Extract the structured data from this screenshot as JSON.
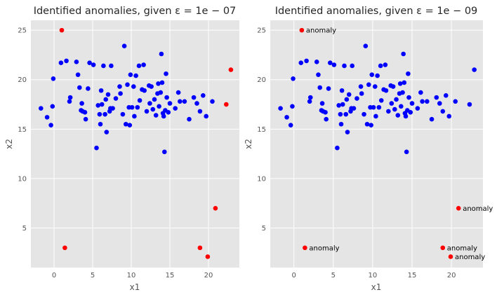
{
  "chart_data": [
    {
      "type": "scatter",
      "title": "Identified anomalies, given ε = 1e − 07",
      "xlabel": "x1",
      "ylabel": "x2",
      "xlim": [
        -3,
        24
      ],
      "ylim": [
        1,
        26
      ],
      "xticks": [
        "0",
        "5",
        "10",
        "15",
        "20"
      ],
      "yticks": [
        "5",
        "10",
        "15",
        "20",
        "25"
      ],
      "grid": true,
      "colors": {
        "background": "#e5e5e5",
        "normal": "#0000ff",
        "anomaly": "#ff0000",
        "grid": "#ffffff"
      },
      "normal_points": [
        [
          -1.7,
          17.1
        ],
        [
          -0.9,
          16.2
        ],
        [
          -0.4,
          15.4
        ],
        [
          -0.2,
          17.3
        ],
        [
          -0.1,
          20.1
        ],
        [
          0.9,
          21.7
        ],
        [
          1.6,
          21.9
        ],
        [
          2.0,
          17.8
        ],
        [
          2.1,
          18.2
        ],
        [
          2.9,
          21.8
        ],
        [
          3.1,
          20.5
        ],
        [
          3.3,
          19.2
        ],
        [
          3.5,
          16.9
        ],
        [
          3.6,
          17.6
        ],
        [
          3.7,
          16.8
        ],
        [
          4.0,
          16.7
        ],
        [
          4.1,
          16.0
        ],
        [
          4.4,
          19.1
        ],
        [
          4.6,
          21.7
        ],
        [
          5.1,
          21.5
        ],
        [
          5.5,
          13.1
        ],
        [
          5.7,
          17.4
        ],
        [
          5.9,
          16.5
        ],
        [
          6.0,
          15.5
        ],
        [
          6.1,
          18.9
        ],
        [
          6.2,
          17.5
        ],
        [
          6.4,
          21.4
        ],
        [
          6.6,
          16.5
        ],
        [
          6.7,
          18.0
        ],
        [
          6.8,
          14.7
        ],
        [
          7.0,
          18.5
        ],
        [
          7.2,
          16.8
        ],
        [
          7.3,
          17.1
        ],
        [
          7.4,
          21.4
        ],
        [
          7.6,
          17.1
        ],
        [
          8.0,
          18.1
        ],
        [
          8.5,
          19.3
        ],
        [
          8.6,
          18.6
        ],
        [
          8.9,
          16.5
        ],
        [
          9.1,
          23.4
        ],
        [
          9.3,
          15.5
        ],
        [
          9.5,
          19.5
        ],
        [
          9.7,
          17.2
        ],
        [
          9.8,
          15.4
        ],
        [
          9.9,
          20.5
        ],
        [
          10.1,
          17.2
        ],
        [
          10.3,
          19.3
        ],
        [
          10.4,
          16.3
        ],
        [
          10.6,
          20.4
        ],
        [
          10.8,
          17.2
        ],
        [
          11.0,
          21.4
        ],
        [
          11.1,
          17.9
        ],
        [
          11.4,
          19.0
        ],
        [
          11.6,
          21.5
        ],
        [
          11.7,
          18.9
        ],
        [
          12.0,
          16.8
        ],
        [
          12.3,
          19.4
        ],
        [
          12.4,
          17.6
        ],
        [
          12.6,
          19.3
        ],
        [
          12.8,
          17.0
        ],
        [
          13.0,
          18.0
        ],
        [
          13.2,
          16.4
        ],
        [
          13.4,
          18.6
        ],
        [
          13.5,
          19.6
        ],
        [
          13.6,
          17.3
        ],
        [
          13.8,
          18.7
        ],
        [
          13.9,
          22.6
        ],
        [
          14.0,
          19.7
        ],
        [
          14.1,
          16.6
        ],
        [
          14.2,
          16.3
        ],
        [
          14.3,
          12.7
        ],
        [
          14.4,
          16.9
        ],
        [
          14.5,
          20.6
        ],
        [
          14.6,
          18.2
        ],
        [
          14.8,
          16.7
        ],
        [
          15.0,
          17.6
        ],
        [
          15.7,
          17.1
        ],
        [
          16.1,
          18.7
        ],
        [
          16.3,
          17.8
        ],
        [
          16.9,
          17.8
        ],
        [
          17.5,
          16.0
        ],
        [
          18.1,
          18.2
        ],
        [
          18.5,
          17.6
        ],
        [
          18.9,
          16.8
        ],
        [
          19.3,
          18.4
        ],
        [
          19.7,
          16.3
        ],
        [
          20.5,
          17.8
        ]
      ],
      "anomaly_points": [
        [
          1.0,
          25.0
        ],
        [
          1.4,
          3.0
        ],
        [
          18.9,
          3.0
        ],
        [
          19.9,
          2.1
        ],
        [
          20.9,
          7.0
        ],
        [
          22.3,
          17.5
        ],
        [
          22.9,
          21.0
        ]
      ],
      "annotations": []
    },
    {
      "type": "scatter",
      "title": "Identified anomalies, given ε = 1e − 09",
      "xlabel": "x1",
      "ylabel": "x2",
      "xlim": [
        -3,
        24
      ],
      "ylim": [
        1,
        26
      ],
      "xticks": [
        "0",
        "5",
        "10",
        "15",
        "20"
      ],
      "yticks": [
        "5",
        "10",
        "15",
        "20",
        "25"
      ],
      "grid": true,
      "colors": {
        "background": "#e5e5e5",
        "normal": "#0000ff",
        "anomaly": "#ff0000",
        "grid": "#ffffff"
      },
      "normal_points": [
        [
          -1.7,
          17.1
        ],
        [
          -0.9,
          16.2
        ],
        [
          -0.4,
          15.4
        ],
        [
          -0.2,
          17.3
        ],
        [
          -0.1,
          20.1
        ],
        [
          0.9,
          21.7
        ],
        [
          1.6,
          21.9
        ],
        [
          2.0,
          17.8
        ],
        [
          2.1,
          18.2
        ],
        [
          2.9,
          21.8
        ],
        [
          3.1,
          20.5
        ],
        [
          3.3,
          19.2
        ],
        [
          3.5,
          16.9
        ],
        [
          3.6,
          17.6
        ],
        [
          3.7,
          16.8
        ],
        [
          4.0,
          16.7
        ],
        [
          4.1,
          16.0
        ],
        [
          4.4,
          19.1
        ],
        [
          4.6,
          21.7
        ],
        [
          5.1,
          21.5
        ],
        [
          5.5,
          13.1
        ],
        [
          5.7,
          17.4
        ],
        [
          5.9,
          16.5
        ],
        [
          6.0,
          15.5
        ],
        [
          6.1,
          18.9
        ],
        [
          6.2,
          17.5
        ],
        [
          6.4,
          21.4
        ],
        [
          6.6,
          16.5
        ],
        [
          6.7,
          18.0
        ],
        [
          6.8,
          14.7
        ],
        [
          7.0,
          18.5
        ],
        [
          7.2,
          16.8
        ],
        [
          7.3,
          17.1
        ],
        [
          7.4,
          21.4
        ],
        [
          7.6,
          17.1
        ],
        [
          8.0,
          18.1
        ],
        [
          8.5,
          19.3
        ],
        [
          8.6,
          18.6
        ],
        [
          8.9,
          16.5
        ],
        [
          9.1,
          23.4
        ],
        [
          9.3,
          15.5
        ],
        [
          9.5,
          19.5
        ],
        [
          9.7,
          17.2
        ],
        [
          9.8,
          15.4
        ],
        [
          9.9,
          20.5
        ],
        [
          10.1,
          17.2
        ],
        [
          10.3,
          19.3
        ],
        [
          10.4,
          16.3
        ],
        [
          10.6,
          20.4
        ],
        [
          10.8,
          17.2
        ],
        [
          11.0,
          21.4
        ],
        [
          11.1,
          17.9
        ],
        [
          11.4,
          19.0
        ],
        [
          11.6,
          21.5
        ],
        [
          11.7,
          18.9
        ],
        [
          12.0,
          16.8
        ],
        [
          12.3,
          19.4
        ],
        [
          12.4,
          17.6
        ],
        [
          12.6,
          19.3
        ],
        [
          12.8,
          17.0
        ],
        [
          13.0,
          18.0
        ],
        [
          13.2,
          16.4
        ],
        [
          13.4,
          18.6
        ],
        [
          13.5,
          19.6
        ],
        [
          13.6,
          17.3
        ],
        [
          13.8,
          18.7
        ],
        [
          13.9,
          22.6
        ],
        [
          14.0,
          19.7
        ],
        [
          14.1,
          16.6
        ],
        [
          14.2,
          16.3
        ],
        [
          14.3,
          12.7
        ],
        [
          14.4,
          16.9
        ],
        [
          14.5,
          20.6
        ],
        [
          14.6,
          18.2
        ],
        [
          14.8,
          16.7
        ],
        [
          15.0,
          17.6
        ],
        [
          15.7,
          17.1
        ],
        [
          16.1,
          18.7
        ],
        [
          16.3,
          17.8
        ],
        [
          16.9,
          17.8
        ],
        [
          17.5,
          16.0
        ],
        [
          18.1,
          18.2
        ],
        [
          18.5,
          17.6
        ],
        [
          18.9,
          16.8
        ],
        [
          19.3,
          18.4
        ],
        [
          19.7,
          16.3
        ],
        [
          20.5,
          17.8
        ],
        [
          22.3,
          17.5
        ],
        [
          22.9,
          21.0
        ]
      ],
      "anomaly_points": [
        [
          1.0,
          25.0
        ],
        [
          1.4,
          3.0
        ],
        [
          18.9,
          3.0
        ],
        [
          19.9,
          2.1
        ],
        [
          20.9,
          7.0
        ]
      ],
      "annotations": [
        {
          "text": "anomaly",
          "x": 1.0,
          "y": 25.0
        },
        {
          "text": "anomaly",
          "x": 1.4,
          "y": 3.0
        },
        {
          "text": "anomaly",
          "x": 18.9,
          "y": 3.0
        },
        {
          "text": "anomaly",
          "x": 19.9,
          "y": 2.1
        },
        {
          "text": "anomaly",
          "x": 20.9,
          "y": 7.0
        }
      ]
    }
  ]
}
